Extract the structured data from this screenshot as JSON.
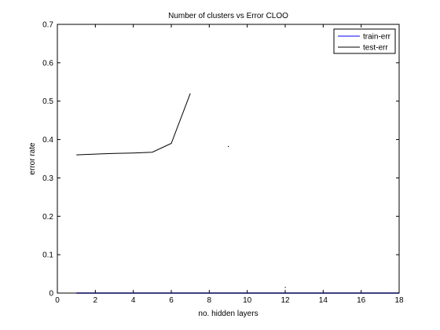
{
  "chart_data": {
    "type": "line",
    "title": "Number of clusters vs Error CLOO",
    "xlabel": "no. hidden layers",
    "ylabel": "error rate",
    "xlim": [
      0,
      18
    ],
    "ylim": [
      0,
      0.7
    ],
    "xticks": [
      0,
      2,
      4,
      6,
      8,
      10,
      12,
      14,
      16,
      18
    ],
    "yticks": [
      0,
      0.1,
      0.2,
      0.3,
      0.4,
      0.5,
      0.6,
      0.7
    ],
    "legend_position": "top-right",
    "grid": false,
    "series": [
      {
        "name": "train-err",
        "color": "#0000ff",
        "x": [
          1,
          2,
          3,
          4,
          5,
          6,
          7,
          8,
          9,
          10,
          11,
          12,
          13,
          14,
          15,
          16,
          17,
          18
        ],
        "y": [
          0,
          0,
          0,
          0,
          0,
          0,
          0,
          0,
          0,
          0,
          0,
          0,
          0,
          0,
          0,
          0,
          0,
          0
        ]
      },
      {
        "name": "test-err",
        "color": "#000000",
        "x": [
          1,
          2,
          3,
          4,
          5,
          6,
          7
        ],
        "y": [
          0.36,
          0.362,
          0.364,
          0.365,
          0.367,
          0.39,
          0.52
        ],
        "isolated_points": [
          {
            "x": 9,
            "y": 0.382
          },
          {
            "x": 12,
            "y": 0.015
          }
        ]
      }
    ]
  }
}
